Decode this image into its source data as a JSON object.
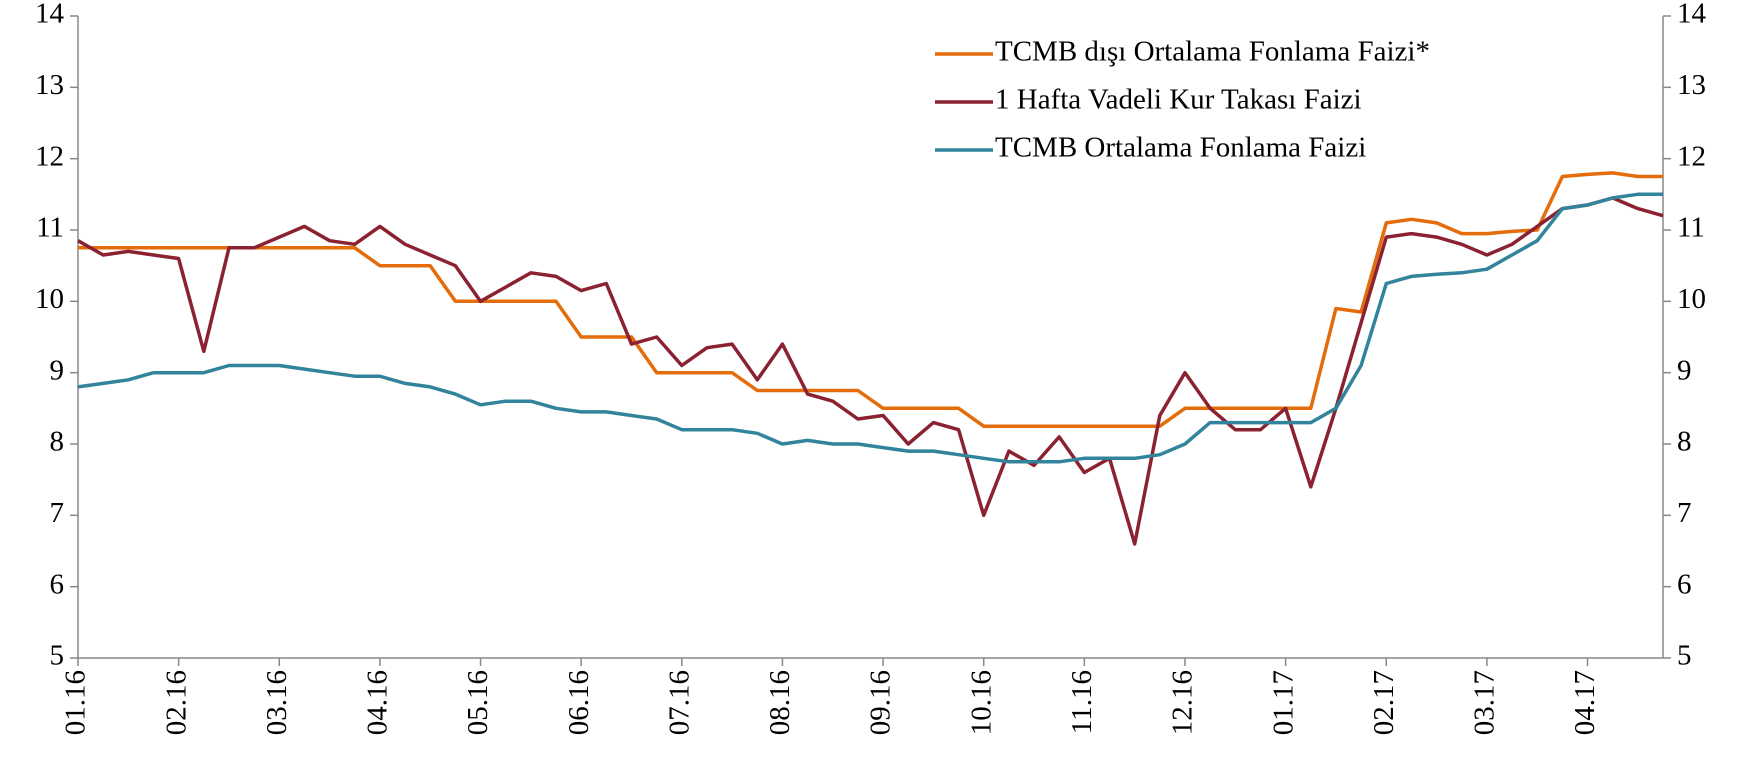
{
  "chart_data": {
    "type": "line",
    "x": [
      0,
      0.25,
      0.5,
      0.75,
      1,
      1.25,
      1.5,
      1.75,
      2,
      2.25,
      2.5,
      2.75,
      3,
      3.25,
      3.5,
      3.75,
      4,
      4.25,
      4.5,
      4.75,
      5,
      5.25,
      5.5,
      5.75,
      6,
      6.25,
      6.5,
      6.75,
      7,
      7.25,
      7.5,
      7.75,
      8,
      8.25,
      8.5,
      8.75,
      9,
      9.25,
      9.5,
      9.75,
      10,
      10.25,
      10.5,
      10.75,
      11,
      11.25,
      11.5,
      11.75,
      12,
      12.25,
      12.5,
      12.75,
      13,
      13.25,
      13.5,
      13.75,
      14,
      14.25,
      14.5,
      14.75,
      15,
      15.25,
      15.5,
      15.75
    ],
    "xlim": [
      0,
      15.75
    ],
    "xticks": [
      {
        "value": 0,
        "label": "01.16"
      },
      {
        "value": 1,
        "label": "02.16"
      },
      {
        "value": 2,
        "label": "03.16"
      },
      {
        "value": 3,
        "label": "04.16"
      },
      {
        "value": 4,
        "label": "05.16"
      },
      {
        "value": 5,
        "label": "06.16"
      },
      {
        "value": 6,
        "label": "07.16"
      },
      {
        "value": 7,
        "label": "08.16"
      },
      {
        "value": 8,
        "label": "09.16"
      },
      {
        "value": 9,
        "label": "10.16"
      },
      {
        "value": 10,
        "label": "11.16"
      },
      {
        "value": 11,
        "label": "12.16"
      },
      {
        "value": 12,
        "label": "01.17"
      },
      {
        "value": 13,
        "label": "02.17"
      },
      {
        "value": 14,
        "label": "03.17"
      },
      {
        "value": 15,
        "label": "04.17"
      }
    ],
    "ylim": [
      5,
      14
    ],
    "yticks": [
      5,
      6,
      7,
      8,
      9,
      10,
      11,
      12,
      13,
      14
    ],
    "y2lim": [
      5,
      14
    ],
    "y2ticks": [
      5,
      6,
      7,
      8,
      9,
      10,
      11,
      12,
      13,
      14
    ],
    "legend": "upper right",
    "series": [
      {
        "name": "TCMB dışı Ortalama Fonlama Faizi*",
        "color": "#e46c0a",
        "values": [
          10.75,
          10.75,
          10.75,
          10.75,
          10.75,
          10.75,
          10.75,
          10.75,
          10.75,
          10.75,
          10.75,
          10.75,
          10.5,
          10.5,
          10.5,
          10.0,
          10.0,
          10.0,
          10.0,
          10.0,
          9.5,
          9.5,
          9.5,
          9.0,
          9.0,
          9.0,
          9.0,
          8.75,
          8.75,
          8.75,
          8.75,
          8.75,
          8.5,
          8.5,
          8.5,
          8.5,
          8.25,
          8.25,
          8.25,
          8.25,
          8.25,
          8.25,
          8.25,
          8.25,
          8.5,
          8.5,
          8.5,
          8.5,
          8.5,
          8.5,
          9.9,
          9.85,
          11.1,
          11.15,
          11.1,
          10.95,
          10.95,
          10.98,
          11.0,
          11.75,
          11.78,
          11.8,
          11.75,
          11.75
        ]
      },
      {
        "name": "1 Hafta Vadeli Kur Takası Faizi",
        "color": "#8b2232",
        "values": [
          10.85,
          10.65,
          10.7,
          10.65,
          10.6,
          9.3,
          10.75,
          10.75,
          10.9,
          11.05,
          10.85,
          10.8,
          11.05,
          10.8,
          10.65,
          10.5,
          10.0,
          10.2,
          10.4,
          10.35,
          10.15,
          10.25,
          9.4,
          9.5,
          9.1,
          9.35,
          9.4,
          8.9,
          9.4,
          8.7,
          8.6,
          8.35,
          8.4,
          8.0,
          8.3,
          8.2,
          7.0,
          7.9,
          7.7,
          8.1,
          7.6,
          7.8,
          6.6,
          8.4,
          9.0,
          8.5,
          8.2,
          8.2,
          8.5,
          7.4,
          8.5,
          9.7,
          10.9,
          10.95,
          10.9,
          10.8,
          10.65,
          10.8,
          11.05,
          11.3,
          11.35,
          11.45,
          11.3,
          11.2
        ]
      },
      {
        "name": "TCMB Ortalama Fonlama Faizi",
        "color": "#31849b",
        "values": [
          8.8,
          8.85,
          8.9,
          9.0,
          9.0,
          9.0,
          9.1,
          9.1,
          9.1,
          9.05,
          9.0,
          8.95,
          8.95,
          8.85,
          8.8,
          8.7,
          8.55,
          8.6,
          8.6,
          8.5,
          8.45,
          8.45,
          8.4,
          8.35,
          8.2,
          8.2,
          8.2,
          8.15,
          8.0,
          8.05,
          8.0,
          8.0,
          7.95,
          7.9,
          7.9,
          7.85,
          7.8,
          7.75,
          7.75,
          7.75,
          7.8,
          7.8,
          7.8,
          7.85,
          8.0,
          8.3,
          8.3,
          8.3,
          8.3,
          8.3,
          8.5,
          9.1,
          10.25,
          10.35,
          10.38,
          10.4,
          10.45,
          10.65,
          10.85,
          11.3,
          11.35,
          11.45,
          11.5,
          11.5
        ]
      }
    ]
  }
}
